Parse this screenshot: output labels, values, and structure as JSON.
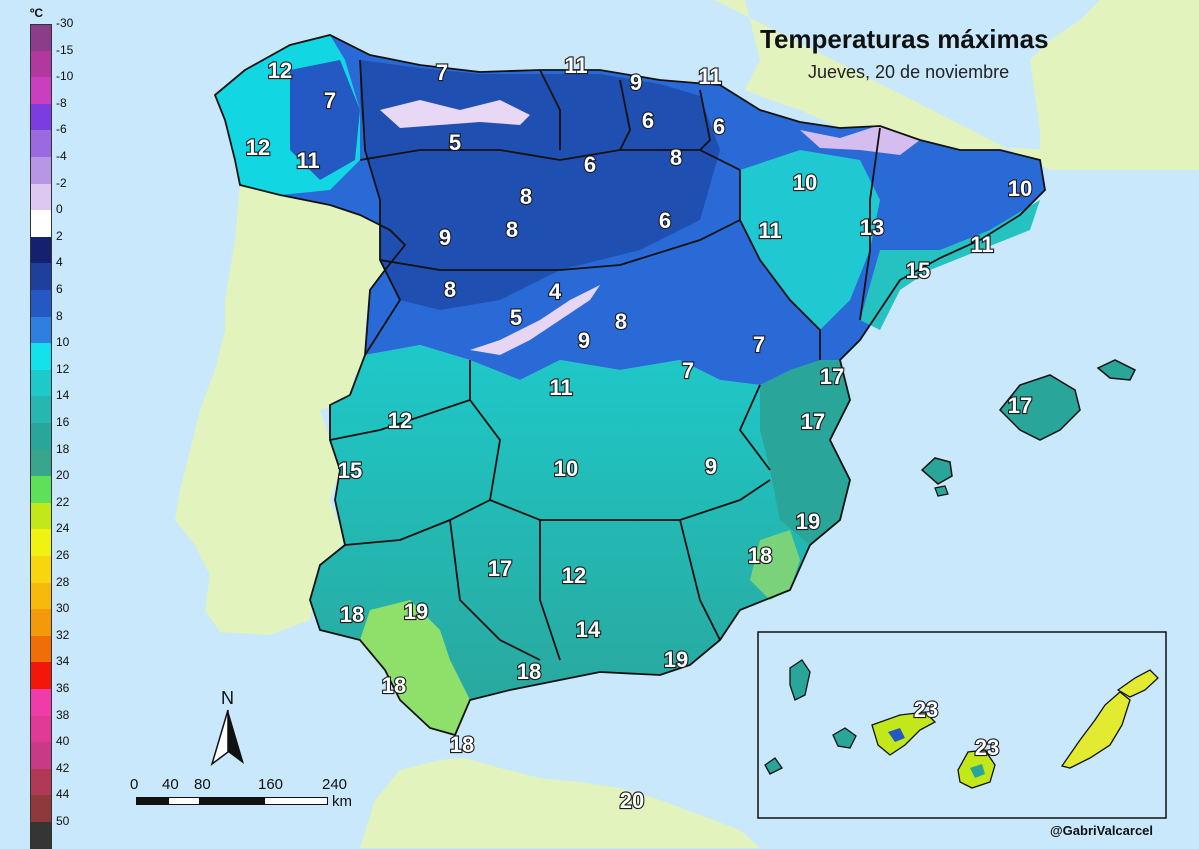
{
  "title": "Temperaturas máximas",
  "subtitle": "Jueves, 20 de noviembre",
  "credit": "@GabriValcarcel",
  "legend": {
    "unit": "ºC",
    "ticks": [
      "-30",
      "-15",
      "-10",
      "-8",
      "-6",
      "-4",
      "-2",
      "0",
      "2",
      "4",
      "6",
      "8",
      "10",
      "12",
      "14",
      "16",
      "18",
      "20",
      "22",
      "24",
      "26",
      "28",
      "30",
      "32",
      "34",
      "36",
      "38",
      "40",
      "42",
      "44",
      "50"
    ],
    "colors": [
      "#8c3d8a",
      "#b0389e",
      "#c93fc0",
      "#7b3ce0",
      "#9a6bde",
      "#b796e6",
      "#ddc8f2",
      "#ffffff",
      "#15206e",
      "#1f3f9c",
      "#2458c2",
      "#2d7fe0",
      "#13e2ec",
      "#1ec9c9",
      "#26b7b0",
      "#2aa59a",
      "#39a58c",
      "#5ee05a",
      "#c2e81a",
      "#f0f212",
      "#f7d50f",
      "#f6b90c",
      "#f39a0a",
      "#ef6e08",
      "#f3160a",
      "#f03ca8",
      "#df3a96",
      "#c93a86",
      "#b03a56",
      "#8f3a3a",
      "#353535"
    ]
  },
  "map_labels": {
    "temperatures": [
      "12",
      "7",
      "11",
      "9",
      "11",
      "7",
      "12",
      "11",
      "5",
      "6",
      "6",
      "6",
      "8",
      "10",
      "10",
      "8",
      "9",
      "8",
      "6",
      "11",
      "13",
      "11",
      "8",
      "4",
      "5",
      "8",
      "9",
      "15",
      "7",
      "7",
      "17",
      "11",
      "17",
      "12",
      "17",
      "15",
      "10",
      "9",
      "19",
      "17",
      "18",
      "12",
      "18",
      "19",
      "14",
      "18",
      "18",
      "19",
      "23",
      "23",
      "18",
      "20"
    ]
  },
  "compass": {
    "label": "N"
  },
  "scale_bar": {
    "ticks": [
      "0",
      "40",
      "80",
      "160",
      "240"
    ],
    "unit": "km"
  },
  "colors": {
    "sea": "#c9e8fb",
    "land_outside": "#e3f3bd",
    "border": "#111111"
  }
}
